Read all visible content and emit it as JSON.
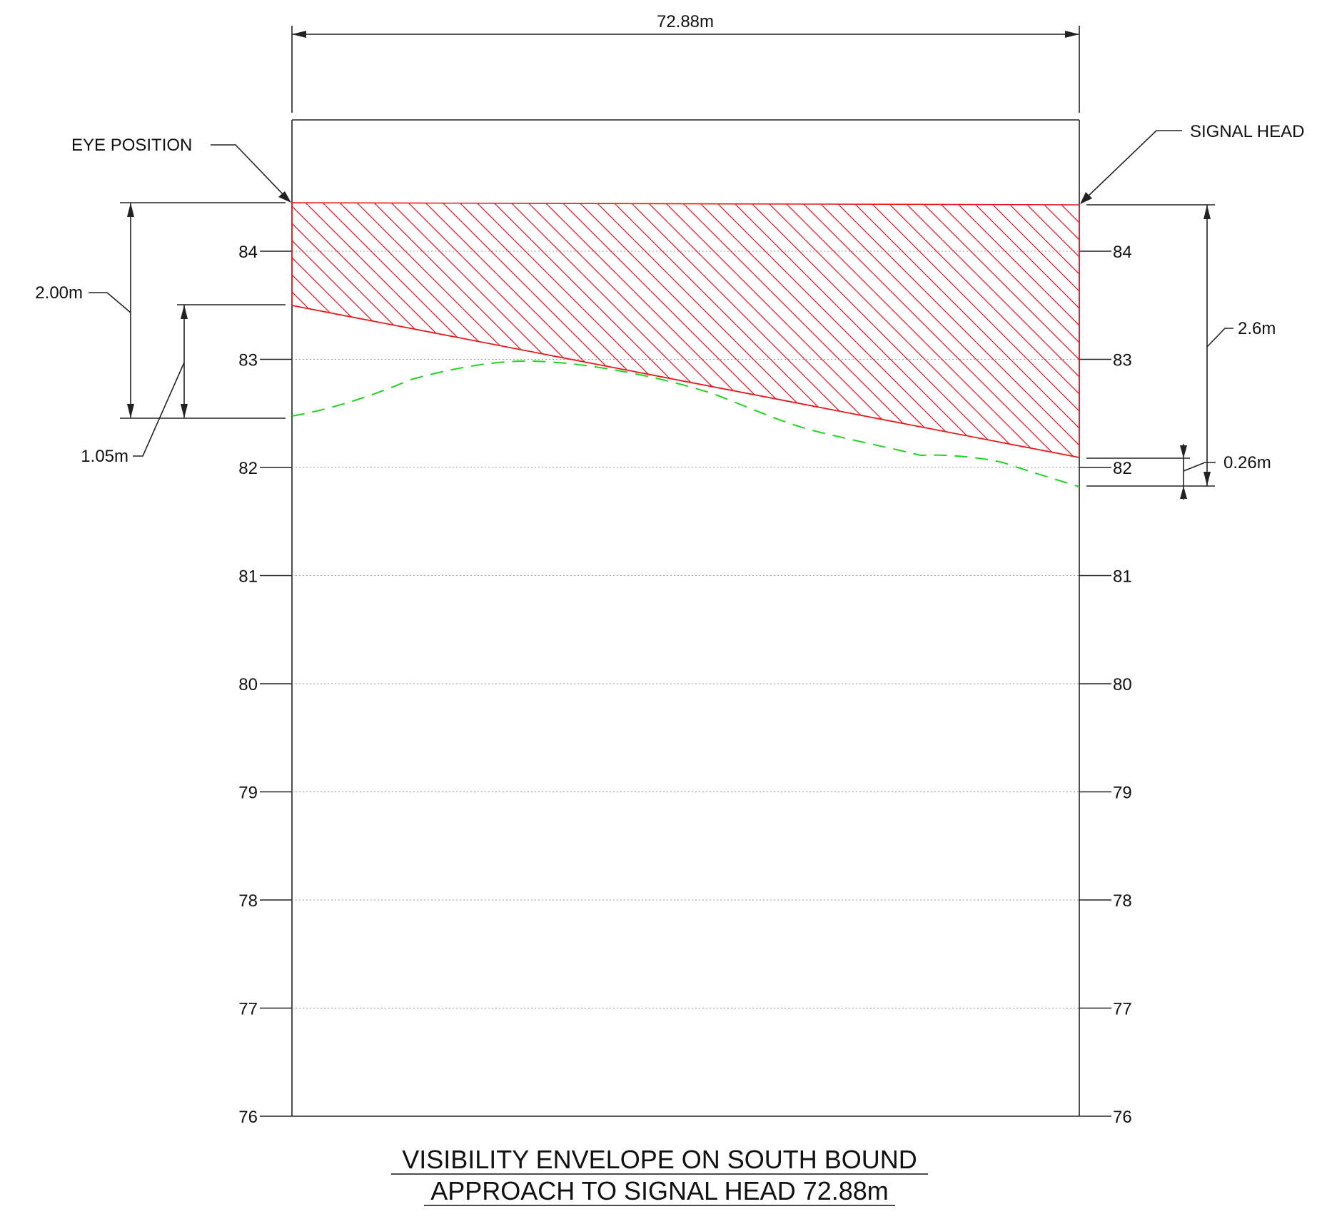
{
  "diagram": {
    "overall_dimension": "72.88m",
    "eye_position_label": "EYE POSITION",
    "signal_head_label": "SIGNAL HEAD",
    "dim_left_outer": "2.00m",
    "dim_left_inner": "1.05m",
    "dim_right_outer": "2.6m",
    "dim_right_inner": "0.26m",
    "title_line1": "VISIBILITY  ENVELOPE ON SOUTH BOUND",
    "title_line2": "APPROACH TO SIGNAL HEAD 72.88m",
    "levels": [
      "84",
      "83",
      "82",
      "81",
      "80",
      "79",
      "78",
      "77",
      "76"
    ],
    "colors": {
      "envelope": "#e8161b",
      "ground": "#22d322",
      "line": "#222222"
    }
  }
}
